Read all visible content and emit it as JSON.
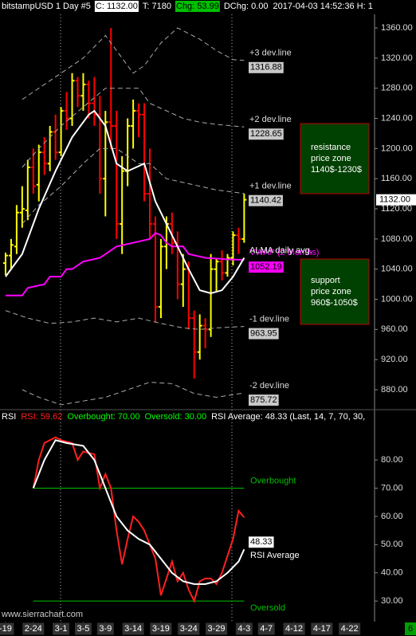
{
  "chart_data": [
    {
      "type": "ohlc",
      "header": [
        {
          "text": "bitstampUSD  1 Day  #5",
          "color": "#ffffff",
          "bg": "#000000"
        },
        {
          "text": "C: 1132.00",
          "color": "#000000",
          "bg": "#ffffff"
        },
        {
          "text": "T: 7180",
          "color": "#ffffff",
          "bg": "#000000"
        },
        {
          "text": "Chg: 53.99",
          "color": "#000000",
          "bg": "#00c000"
        },
        {
          "text": "DChg: 0.00",
          "color": "#ffffff",
          "bg": "#000000"
        },
        {
          "text": "2017-04-03 14:52:36 H: 1",
          "color": "#ffffff",
          "bg": "#000000"
        }
      ],
      "xlim": [
        -1,
        66.5
      ],
      "ylim": [
        857.8,
        1375.9
      ],
      "yticks": [
        {
          "value": 880,
          "label": "880.00"
        },
        {
          "value": 920,
          "label": "920.00"
        },
        {
          "value": 960,
          "label": "960.00"
        },
        {
          "value": 1000,
          "label": "1000.00"
        },
        {
          "value": 1040,
          "label": "1040.00"
        },
        {
          "value": 1080,
          "label": "1080.00"
        },
        {
          "value": 1120,
          "label": "1120.00"
        },
        {
          "value": 1160,
          "label": "1160.00"
        },
        {
          "value": 1200,
          "label": "1200.00"
        },
        {
          "value": 1240,
          "label": "1240.00"
        },
        {
          "value": 1280,
          "label": "1280.00"
        },
        {
          "value": 1320,
          "label": "1320.00"
        },
        {
          "value": 1360,
          "label": "1360.00"
        }
      ],
      "ohlc": {
        "up_color": "#ffff00",
        "down_color": "#ff0000",
        "last_label": "1132.00",
        "x": [
          0,
          1,
          2,
          3,
          4,
          5,
          6,
          7,
          8,
          9,
          10,
          11,
          12,
          13,
          14,
          15,
          16,
          17,
          18,
          19,
          20,
          21,
          22,
          23,
          24,
          25,
          26,
          27,
          28,
          29,
          30,
          31,
          32,
          33,
          34,
          35,
          36,
          37,
          38,
          39,
          40,
          41,
          42,
          43
        ],
        "open": [
          1048,
          1058,
          1070,
          1115,
          1118,
          1175,
          1152,
          1195,
          1180,
          1222,
          1195,
          1250,
          1240,
          1290,
          1270,
          1285,
          1260,
          1245,
          1160,
          1235,
          1230,
          1100,
          1170,
          1230,
          1250,
          1245,
          1140,
          1100,
          990,
          1070,
          1100,
          1075,
          1020,
          1040,
          975,
          930,
          965,
          960,
          1040,
          1050,
          1035,
          1055,
          1085,
          1080
        ],
        "high": [
          1062,
          1080,
          1125,
          1150,
          1185,
          1200,
          1205,
          1215,
          1230,
          1245,
          1255,
          1275,
          1300,
          1295,
          1300,
          1290,
          1295,
          1270,
          1250,
          1360,
          1250,
          1190,
          1240,
          1265,
          1260,
          1260,
          1200,
          1110,
          1080,
          1110,
          1115,
          1090,
          1060,
          1050,
          985,
          980,
          975,
          1060,
          1055,
          1065,
          1060,
          1090,
          1095,
          1140
        ],
        "low": [
          1032,
          1040,
          1060,
          1095,
          1105,
          1140,
          1130,
          1165,
          1170,
          1185,
          1190,
          1225,
          1230,
          1255,
          1250,
          1240,
          1230,
          1140,
          1110,
          1200,
          1080,
          1060,
          1150,
          1200,
          1215,
          1130,
          1080,
          970,
          975,
          1040,
          1060,
          1000,
          990,
          960,
          895,
          920,
          935,
          950,
          1010,
          1025,
          1030,
          1045,
          1060,
          1075
        ],
        "close": [
          1058,
          1072,
          1115,
          1120,
          1175,
          1150,
          1195,
          1180,
          1222,
          1195,
          1250,
          1240,
          1290,
          1270,
          1285,
          1260,
          1245,
          1160,
          1235,
          1230,
          1100,
          1170,
          1230,
          1250,
          1245,
          1140,
          1100,
          990,
          1070,
          1100,
          1075,
          1020,
          1040,
          975,
          930,
          965,
          960,
          1040,
          1050,
          1035,
          1055,
          1085,
          1080,
          1132
        ]
      },
      "series": [
        {
          "name": "+3 dev.line",
          "color": "#aaaaaa",
          "dash": true,
          "box": true,
          "x": [
            3,
            6,
            10,
            14,
            18,
            20,
            23,
            25,
            28,
            31,
            35,
            38,
            41,
            43
          ],
          "values": [
            1265,
            1280,
            1300,
            1320,
            1350,
            1330,
            1300,
            1310,
            1340,
            1360,
            1345,
            1330,
            1318,
            1316.88
          ]
        },
        {
          "name": "+2 dev.line",
          "color": "#aaaaaa",
          "dash": true,
          "box": true,
          "x": [
            3,
            6,
            10,
            14,
            18,
            21,
            24,
            26,
            29,
            32,
            35,
            38,
            43
          ],
          "values": [
            1175,
            1200,
            1230,
            1255,
            1280,
            1280,
            1280,
            1260,
            1250,
            1240,
            1235,
            1232,
            1228.65
          ]
        },
        {
          "name": "+1 dev.line",
          "color": "#aaaaaa",
          "dash": true,
          "box": true,
          "x": [
            3,
            6,
            10,
            14,
            17,
            20,
            24,
            26,
            29,
            32,
            35,
            38,
            43
          ],
          "values": [
            1100,
            1125,
            1150,
            1180,
            1200,
            1200,
            1180,
            1180,
            1160,
            1155,
            1150,
            1145,
            1140.42
          ]
        },
        {
          "name": "VWAP (2 Months)",
          "color": "#ff00ff",
          "dash": false,
          "box": true,
          "x": [
            0,
            3,
            4,
            7,
            8,
            10,
            11,
            12,
            14,
            17,
            18,
            19,
            20,
            26,
            27,
            28,
            29,
            30,
            32,
            33,
            36,
            40,
            43
          ],
          "values": [
            1005,
            1005,
            1015,
            1020,
            1030,
            1030,
            1040,
            1040,
            1050,
            1055,
            1060,
            1065,
            1070,
            1080,
            1088,
            1085,
            1075,
            1070,
            1070,
            1060,
            1055,
            1053,
            1052.19
          ]
        },
        {
          "name": "ALMA daily avg.",
          "color": "#ffffff",
          "dash": false,
          "box": false,
          "x": [
            0,
            3,
            6,
            9,
            12,
            15,
            16,
            18,
            20,
            22,
            25,
            27,
            29,
            31,
            33,
            35,
            37,
            39,
            41,
            43
          ],
          "values": [
            1030,
            1060,
            1120,
            1170,
            1215,
            1245,
            1250,
            1230,
            1180,
            1170,
            1180,
            1130,
            1100,
            1070,
            1040,
            1012,
            1008,
            1012,
            1030,
            1055
          ]
        },
        {
          "name": "-1 dev.line",
          "color": "#aaaaaa",
          "dash": true,
          "box": true,
          "x": [
            0,
            4,
            8,
            12,
            16,
            20,
            24,
            28,
            32,
            35,
            38,
            43
          ],
          "values": [
            985,
            975,
            968,
            970,
            975,
            970,
            975,
            968,
            962,
            960,
            962,
            963.95
          ]
        },
        {
          "name": "-2 dev.line",
          "color": "#aaaaaa",
          "dash": true,
          "box": true,
          "x": [
            3,
            6,
            10,
            14,
            18,
            22,
            26,
            30,
            34,
            38,
            43
          ],
          "values": [
            880,
            870,
            860,
            865,
            870,
            880,
            890,
            888,
            875,
            870,
            875.72
          ]
        }
      ],
      "annotations": [
        {
          "lines": [
            "resistance",
            "price zone",
            "1140$-1230$"
          ]
        },
        {
          "lines": [
            "support",
            "price zone",
            "960$-1050$"
          ]
        }
      ]
    },
    {
      "type": "line",
      "header": [
        {
          "text": "RSI",
          "color": "#ffffff"
        },
        {
          "text": "RSI: 59.62",
          "color": "#ff2020"
        },
        {
          "text": "Overbought: 70.00",
          "color": "#00ff00"
        },
        {
          "text": "Oversold: 30.00",
          "color": "#00ff00"
        },
        {
          "text": "RSI Average: 48.33  (Last, 14, 7, 70, 30,",
          "color": "#ffffff"
        }
      ],
      "xlim": [
        -1,
        66.5
      ],
      "ylim": [
        22.7,
        93.3
      ],
      "yticks": [
        {
          "value": 30,
          "label": "30.00"
        },
        {
          "value": 40,
          "label": "40.00"
        },
        {
          "value": 50,
          "label": "50.00"
        },
        {
          "value": 60,
          "label": "60.00"
        },
        {
          "value": 70,
          "label": "70.00"
        },
        {
          "value": 80,
          "label": "80.00"
        }
      ],
      "xticks": [
        {
          "value": 0,
          "label": "-19"
        },
        {
          "value": 5,
          "label": "2-24"
        },
        {
          "value": 10,
          "label": "3-1"
        },
        {
          "value": 14,
          "label": "3-5"
        },
        {
          "value": 18,
          "label": "3-9"
        },
        {
          "value": 23,
          "label": "3-14"
        },
        {
          "value": 28,
          "label": "3-19"
        },
        {
          "value": 33,
          "label": "3-24"
        },
        {
          "value": 38,
          "label": "3-29"
        },
        {
          "value": 43,
          "label": "4-3"
        },
        {
          "value": 47,
          "label": "4-7"
        },
        {
          "value": 52,
          "label": "4-12"
        },
        {
          "value": 57,
          "label": "4-17"
        },
        {
          "value": 62,
          "label": "4-22"
        }
      ],
      "levels": [
        {
          "name": "Overbought",
          "value": 70,
          "color": "#00c000",
          "x": [
            5,
            43
          ]
        },
        {
          "name": "Oversold",
          "value": 30,
          "color": "#00c000",
          "x": [
            5,
            43
          ]
        }
      ],
      "series": [
        {
          "name": "RSI",
          "color": "#ff2020",
          "box": false,
          "x": [
            5,
            6,
            7,
            9,
            10,
            12,
            13,
            14,
            16,
            17,
            18,
            19,
            20,
            21,
            22,
            23,
            24,
            25,
            26,
            27,
            28,
            29,
            30,
            31,
            32,
            33,
            34,
            35,
            36,
            37,
            38,
            39,
            41,
            42,
            43
          ],
          "values": [
            70,
            80,
            86,
            88,
            87,
            86,
            80,
            83,
            82,
            70,
            75,
            70,
            55,
            43,
            52,
            60,
            58,
            55,
            50,
            45,
            32,
            38,
            44,
            37,
            40,
            34,
            30,
            37,
            38,
            38,
            36,
            40,
            52,
            62,
            59.62
          ]
        },
        {
          "name": "RSI Average",
          "color": "#ffffff",
          "box": true,
          "x": [
            5,
            7,
            9,
            11,
            14,
            16,
            18,
            20,
            22,
            24,
            26,
            28,
            30,
            32,
            34,
            36,
            38,
            40,
            42,
            43
          ],
          "values": [
            70,
            80,
            87,
            86,
            85,
            80,
            70,
            60,
            55,
            52,
            50,
            45,
            40,
            37,
            36,
            36,
            37,
            40,
            44,
            48.33
          ]
        }
      ],
      "watermark": "www.sierrachart.com",
      "page_number": "6"
    }
  ]
}
